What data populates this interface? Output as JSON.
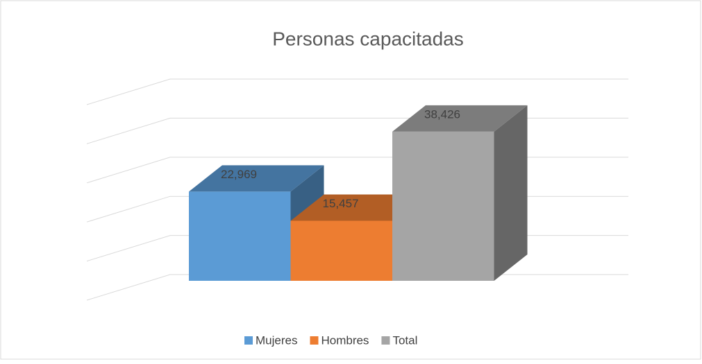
{
  "chart_data": {
    "type": "bar3d",
    "title": "Personas capacitadas",
    "series": [
      {
        "name": "Mujeres",
        "color": "#5b9bd5",
        "values": [
          22969
        ],
        "value_labels": [
          "22,969"
        ]
      },
      {
        "name": "Hombres",
        "color": "#ed7d31",
        "values": [
          15457
        ],
        "value_labels": [
          "15,457"
        ]
      },
      {
        "name": "Total",
        "color": "#a5a5a5",
        "values": [
          38426
        ],
        "value_labels": [
          "38,426"
        ]
      }
    ],
    "ylim": [
      0,
      50000
    ],
    "yticks": [
      0,
      10000,
      20000,
      30000,
      40000,
      50000
    ],
    "grid": true,
    "legend": "bottom"
  }
}
